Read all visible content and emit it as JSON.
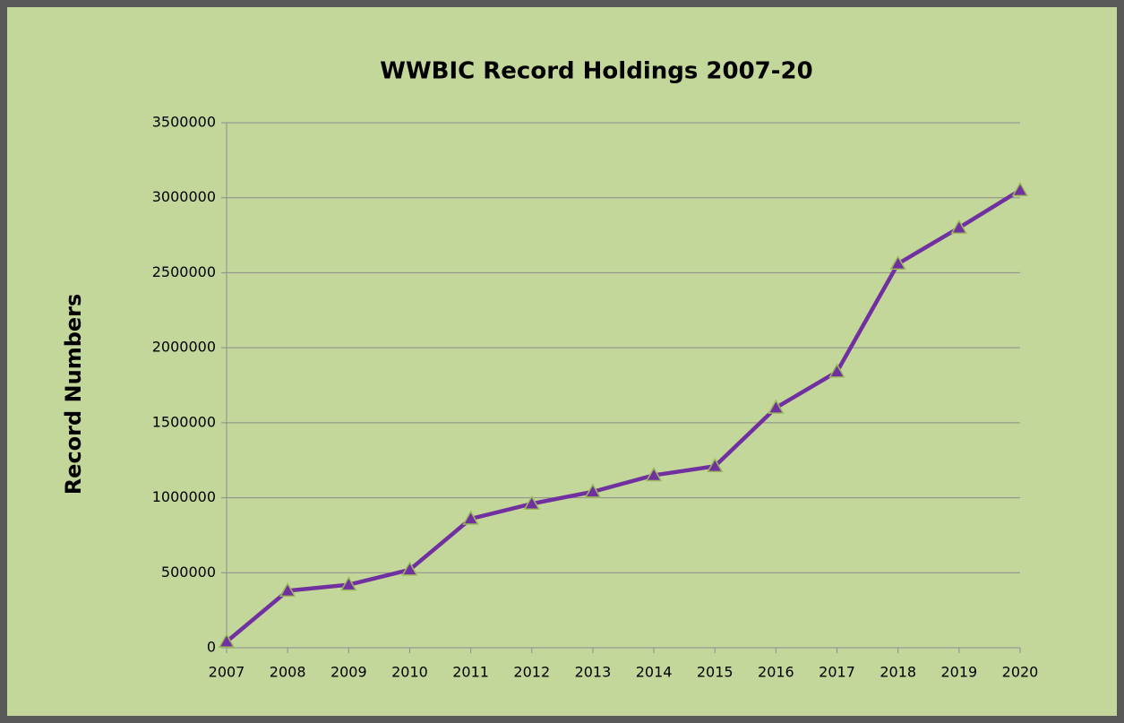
{
  "chart_data": {
    "type": "line",
    "title": "WWBIC Record Holdings 2007-20",
    "ylabel": "Record Numbers",
    "categories": [
      "2007",
      "2008",
      "2009",
      "2010",
      "2011",
      "2012",
      "2013",
      "2014",
      "2015",
      "2016",
      "2017",
      "2018",
      "2019",
      "2020"
    ],
    "series": [
      {
        "color": "#7030a0",
        "values": [
          40000,
          380000,
          420000,
          520000,
          860000,
          960000,
          1040000,
          1150000,
          1210000,
          1600000,
          1840000,
          2560000,
          2800000,
          3050000
        ]
      }
    ],
    "ylim": [
      0,
      3500000
    ],
    "yticks": [
      0,
      500000,
      1000000,
      1500000,
      2000000,
      2500000,
      3000000,
      3500000
    ],
    "grid": true
  }
}
